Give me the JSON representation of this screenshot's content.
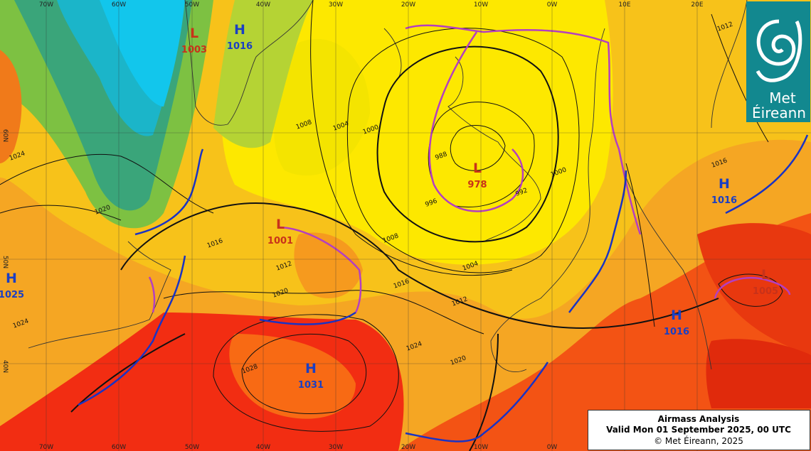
{
  "logo": {
    "line1": "Met",
    "line2": "Éireann"
  },
  "caption": {
    "title": "Airmass Analysis",
    "valid": "Valid Mon 01 September 2025, 00 UTC",
    "copyright": "© Met Éireann, 2025"
  },
  "longitudes": [
    "70W",
    "60W",
    "50W",
    "40W",
    "30W",
    "20W",
    "10W",
    "0W",
    "10E",
    "20E"
  ],
  "latitudes": [
    "60N",
    "50N",
    "40N"
  ],
  "pressure_centers": [
    {
      "kind": "L",
      "value": "1003"
    },
    {
      "kind": "H",
      "value": "1016"
    },
    {
      "kind": "H",
      "value": "1025"
    },
    {
      "kind": "L",
      "value": "1001"
    },
    {
      "kind": "L",
      "value": "978"
    },
    {
      "kind": "H",
      "value": "1016"
    },
    {
      "kind": "H",
      "value": "1031"
    },
    {
      "kind": "H",
      "value": "1016"
    },
    {
      "kind": "L",
      "value": "1005"
    }
  ],
  "isobar_labels": [
    "1000",
    "1004",
    "1008",
    "1012",
    "1016",
    "1020",
    "1024",
    "1028",
    "996",
    "992",
    "988",
    "1008",
    "1012",
    "1016",
    "1020",
    "1024",
    "1004",
    "1000",
    "1012",
    "1016",
    "1020",
    "1024"
  ]
}
